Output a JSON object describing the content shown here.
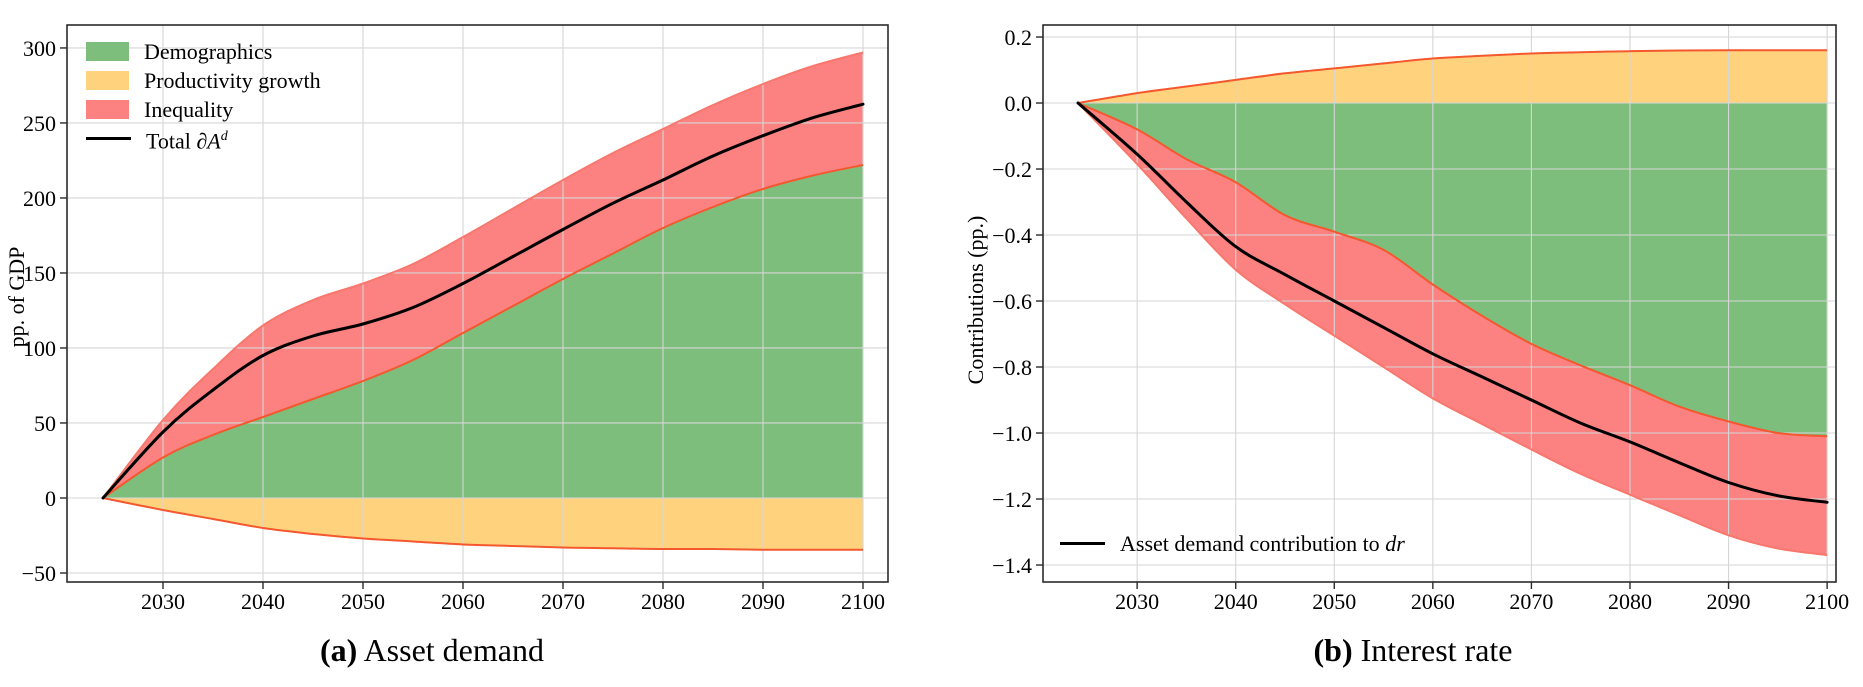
{
  "figure": {
    "background": "#ffffff",
    "caption_a": {
      "tag": "(a)",
      "text": " Asset demand"
    },
    "caption_b": {
      "tag": "(b)",
      "text": " Interest rate"
    }
  },
  "colors": {
    "demographics_fill": "#7dbe7d",
    "productivity_fill": "#ffd27e",
    "inequality_fill": "#fc8181",
    "boundary_edge_orange": "#f4582f",
    "boundary_edge_salmon": "#f8786d",
    "total_line": "#000000",
    "grid": "#d6d6d6",
    "spine": "#2b2b2b"
  },
  "chart_data": [
    {
      "id": "asset-demand",
      "type": "area",
      "title": "(a) Asset demand",
      "xlabel": "",
      "ylabel": "pp. of GDP",
      "grid": true,
      "legend_position": "top-left",
      "x": [
        2024,
        2030,
        2035,
        2040,
        2045,
        2050,
        2055,
        2060,
        2065,
        2070,
        2075,
        2080,
        2085,
        2090,
        2095,
        2100
      ],
      "xlim": [
        2020.4,
        2102.5
      ],
      "ylim": [
        -56.0,
        315.3
      ],
      "x_ticks": [
        {
          "v": 2030,
          "label": "2030"
        },
        {
          "v": 2040,
          "label": "2040"
        },
        {
          "v": 2050,
          "label": "2050"
        },
        {
          "v": 2060,
          "label": "2060"
        },
        {
          "v": 2070,
          "label": "2070"
        },
        {
          "v": 2080,
          "label": "2080"
        },
        {
          "v": 2090,
          "label": "2090"
        },
        {
          "v": 2100,
          "label": "2100"
        }
      ],
      "y_ticks": [
        {
          "v": 300,
          "label": "300"
        },
        {
          "v": 250,
          "label": "250"
        },
        {
          "v": 200,
          "label": "200"
        },
        {
          "v": 150,
          "label": "150"
        },
        {
          "v": 100,
          "label": "100"
        },
        {
          "v": 50,
          "label": "50"
        },
        {
          "v": 0,
          "label": "0"
        },
        {
          "v": -50,
          "label": "−50"
        }
      ],
      "series": [
        {
          "name": "Demographics",
          "kind": "area",
          "stack": "pos",
          "color": "#7dbe7d",
          "edge": "#f4582f",
          "values": [
            0,
            27,
            42,
            54,
            66,
            78,
            92,
            110,
            128,
            146,
            163,
            180,
            194,
            206,
            215,
            222
          ]
        },
        {
          "name": "Productivity growth",
          "kind": "area",
          "stack": "neg",
          "color": "#ffd27e",
          "edge": "#f4582f",
          "values": [
            0,
            -8,
            -14,
            -20,
            -24,
            -27,
            -29,
            -31,
            -32,
            -33,
            -33.5,
            -34,
            -34,
            -34.5,
            -34.5,
            -34.5
          ]
        },
        {
          "name": "Inequality",
          "kind": "area",
          "stack": "pos",
          "color": "#fc8181",
          "edge": "#f8786d",
          "values": [
            0,
            25,
            44,
            61,
            66,
            65,
            64,
            64,
            65,
            66,
            67,
            66,
            68,
            70,
            73,
            75
          ]
        },
        {
          "name": "Total ∂A^d",
          "kind": "line",
          "color": "#000000",
          "width": 3,
          "values": [
            0,
            44,
            72,
            95,
            108,
            116,
            127,
            143,
            161,
            179,
            196.5,
            212,
            228,
            241.5,
            253.5,
            262.5
          ]
        }
      ],
      "legend": {
        "items": [
          {
            "swatch": "patch",
            "color": "#7dbe7d",
            "label": "Demographics"
          },
          {
            "swatch": "patch",
            "color": "#ffd27e",
            "label": "Productivity growth"
          },
          {
            "swatch": "patch",
            "color": "#fc8181",
            "label": "Inequality"
          },
          {
            "swatch": "line",
            "color": "#000000",
            "label": "Total ∂",
            "math_symbol": "A",
            "superscript": "d"
          }
        ]
      }
    },
    {
      "id": "interest-rate",
      "type": "area",
      "title": "(b) Interest rate",
      "xlabel": "",
      "ylabel": "Contributions (pp.)",
      "grid": true,
      "legend_position": "bottom-left",
      "x": [
        2024,
        2030,
        2035,
        2040,
        2045,
        2050,
        2055,
        2060,
        2065,
        2070,
        2075,
        2080,
        2085,
        2090,
        2095,
        2100
      ],
      "xlim": [
        2020.45,
        2100.9
      ],
      "ylim": [
        -1.4515,
        0.2364
      ],
      "x_ticks": [
        {
          "v": 2030,
          "label": "2030"
        },
        {
          "v": 2040,
          "label": "2040"
        },
        {
          "v": 2050,
          "label": "2050"
        },
        {
          "v": 2060,
          "label": "2060"
        },
        {
          "v": 2070,
          "label": "2070"
        },
        {
          "v": 2080,
          "label": "2080"
        },
        {
          "v": 2090,
          "label": "2090"
        },
        {
          "v": 2100,
          "label": "2100"
        }
      ],
      "y_ticks": [
        {
          "v": 0.2,
          "label": "0.2"
        },
        {
          "v": 0.0,
          "label": "0.0"
        },
        {
          "v": -0.2,
          "label": "−0.2"
        },
        {
          "v": -0.4,
          "label": "−0.4"
        },
        {
          "v": -0.6,
          "label": "−0.6"
        },
        {
          "v": -0.8,
          "label": "−0.8"
        },
        {
          "v": -1.0,
          "label": "−1.0"
        },
        {
          "v": -1.2,
          "label": "−1.2"
        },
        {
          "v": -1.4,
          "label": "−1.4"
        }
      ],
      "series": [
        {
          "name": "Productivity growth",
          "kind": "area",
          "stack": "pos",
          "color": "#ffd27e",
          "edge": "#f4582f",
          "values": [
            0,
            0.03,
            0.05,
            0.07,
            0.09,
            0.105,
            0.12,
            0.135,
            0.143,
            0.15,
            0.154,
            0.157,
            0.159,
            0.16,
            0.16,
            0.16
          ]
        },
        {
          "name": "Demographics",
          "kind": "area",
          "stack": "neg",
          "color": "#7dbe7d",
          "edge": "#f4582f",
          "values": [
            0,
            -0.08,
            -0.17,
            -0.24,
            -0.34,
            -0.39,
            -0.445,
            -0.55,
            -0.645,
            -0.73,
            -0.795,
            -0.855,
            -0.92,
            -0.965,
            -1.0,
            -1.01
          ]
        },
        {
          "name": "Inequality",
          "kind": "area",
          "stack": "neg",
          "color": "#fc8181",
          "edge": "#f8786d",
          "values": [
            0,
            -0.105,
            -0.18,
            -0.265,
            -0.27,
            -0.315,
            -0.355,
            -0.345,
            -0.328,
            -0.32,
            -0.329,
            -0.332,
            -0.329,
            -0.345,
            -0.35,
            -0.36
          ]
        },
        {
          "name": "Asset demand contribution to dr",
          "kind": "line",
          "color": "#000000",
          "width": 3,
          "values": [
            0,
            -0.155,
            -0.3,
            -0.435,
            -0.52,
            -0.6,
            -0.68,
            -0.76,
            -0.83,
            -0.9,
            -0.97,
            -1.027,
            -1.09,
            -1.15,
            -1.19,
            -1.21
          ]
        }
      ],
      "legend": {
        "items": [
          {
            "swatch": "line",
            "color": "#000000",
            "label": "Asset demand contribution to ",
            "italic_suffix": "dr"
          }
        ]
      }
    }
  ]
}
